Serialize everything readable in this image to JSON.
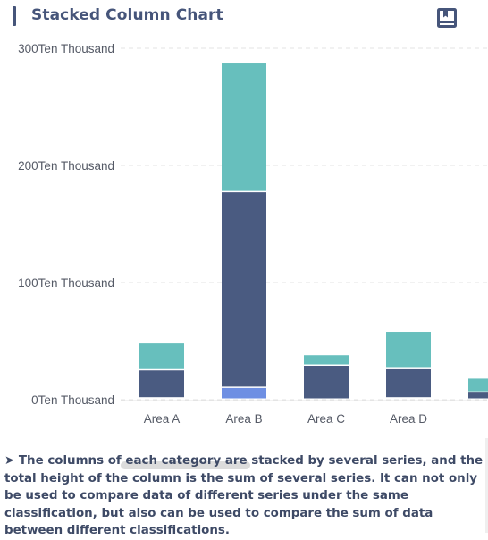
{
  "header": {
    "title": "Stacked Column Chart",
    "icon": "book-icon",
    "accent_color": "#46557a"
  },
  "chart_data": {
    "type": "bar",
    "stacked": true,
    "categories": [
      "Area A",
      "Area B",
      "Area C",
      "Area D",
      ""
    ],
    "series": [
      {
        "values": [
          1,
          10,
          0,
          1,
          0
        ],
        "color": "#6e8fe3"
      },
      {
        "values": [
          24,
          167,
          29,
          25,
          6
        ],
        "color": "#4a5b81"
      },
      {
        "values": [
          23,
          110,
          9,
          32,
          12
        ],
        "color": "#67bfbd"
      }
    ],
    "yticks": [
      "0Ten Thousand",
      "100Ten Thousand",
      "200Ten Thousand",
      "300Ten Thousand"
    ],
    "ylim": [
      0,
      300
    ],
    "grid": true,
    "xlabel": "",
    "ylabel": ""
  },
  "description": {
    "arrow": "➤",
    "text": "The columns of each category are stacked by several series, and the total height of the column is the sum of several series. It can not only be used to compare data of different series under the same classification, but also can be used to compare the sum of data between different classifications."
  }
}
